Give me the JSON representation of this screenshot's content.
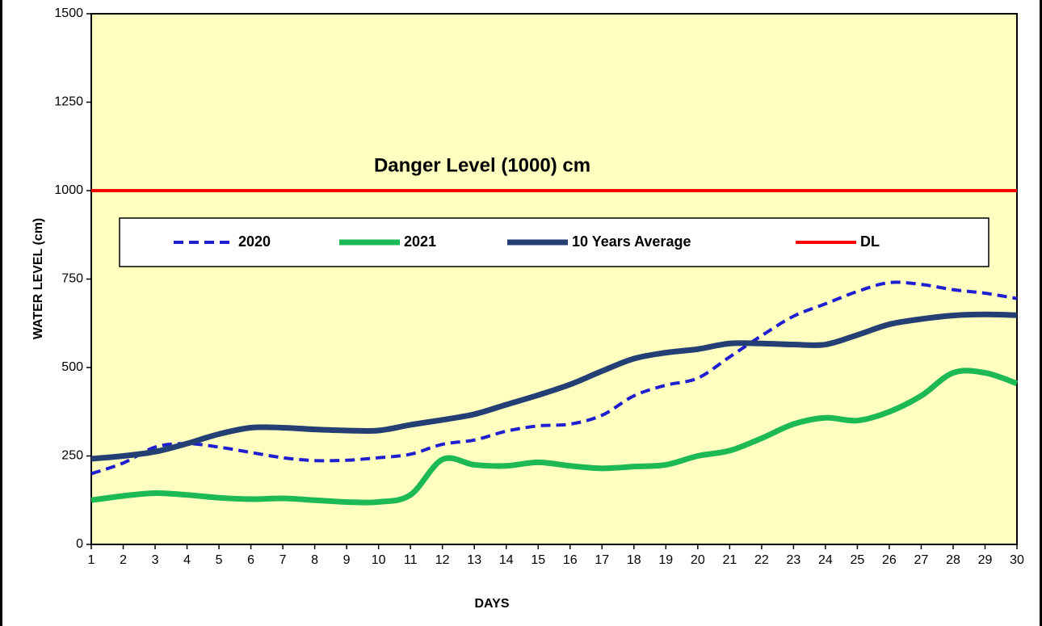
{
  "chart_data": {
    "type": "line",
    "ylabel": "WATER LEVEL (cm)",
    "xlabel": "DAYS",
    "categories": [
      "1",
      "2",
      "3",
      "4",
      "5",
      "6",
      "7",
      "8",
      "9",
      "10",
      "11",
      "12",
      "13",
      "14",
      "15",
      "16",
      "17",
      "18",
      "19",
      "20",
      "21",
      "22",
      "23",
      "24",
      "25",
      "26",
      "27",
      "28",
      "29",
      "30"
    ],
    "series": [
      {
        "name": "2020",
        "color": "#1f1fd0",
        "line_style": "dashed",
        "values": [
          200,
          230,
          275,
          285,
          275,
          260,
          245,
          237,
          238,
          245,
          255,
          283,
          295,
          320,
          335,
          340,
          365,
          420,
          450,
          470,
          530,
          590,
          645,
          680,
          715,
          740,
          735,
          720,
          710,
          695
        ]
      },
      {
        "name": "2021",
        "color": "#1db954",
        "line_style": "solid",
        "values": [
          125,
          137,
          145,
          140,
          132,
          128,
          130,
          125,
          120,
          120,
          140,
          240,
          225,
          222,
          232,
          222,
          215,
          220,
          225,
          250,
          265,
          300,
          340,
          358,
          350,
          375,
          420,
          485,
          485,
          455
        ]
      },
      {
        "name": "10 Years Average",
        "color": "#243f73",
        "line_style": "solid",
        "values": [
          242,
          250,
          262,
          285,
          312,
          330,
          330,
          325,
          322,
          322,
          338,
          352,
          368,
          395,
          422,
          452,
          490,
          525,
          542,
          552,
          568,
          568,
          565,
          565,
          592,
          622,
          637,
          647,
          650,
          648
        ]
      }
    ],
    "danger_level": {
      "name": "DL",
      "value": 1000,
      "color": "#ff0000",
      "label": "Danger Level (1000) cm"
    },
    "ylim": [
      0,
      1500
    ],
    "yticks": [
      0,
      250,
      500,
      750,
      1000,
      1250,
      1500
    ],
    "plot_background": "#ffffc0"
  }
}
